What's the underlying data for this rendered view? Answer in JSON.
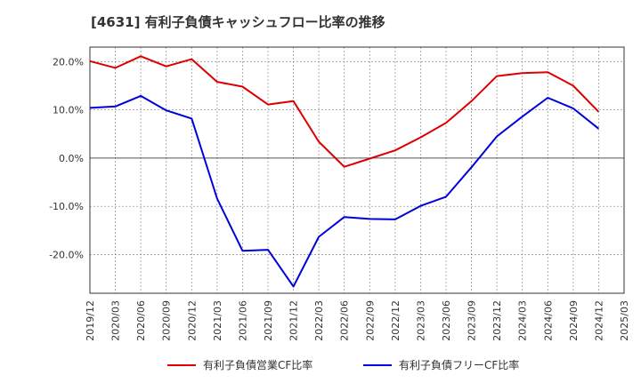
{
  "chart_data": {
    "type": "line",
    "title": "[4631]  有利子負債キャッシュフロー比率の推移",
    "xlabel": "",
    "ylabel": "",
    "x": [
      "2019/12",
      "2020/03",
      "2020/06",
      "2020/09",
      "2020/12",
      "2021/03",
      "2021/06",
      "2021/09",
      "2021/12",
      "2022/03",
      "2022/06",
      "2022/09",
      "2022/12",
      "2023/03",
      "2023/06",
      "2023/09",
      "2023/12",
      "2024/03",
      "2024/06",
      "2024/09",
      "2024/12",
      "2025/03"
    ],
    "ylim": [
      -28,
      23
    ],
    "yticks": [
      20,
      10,
      0,
      -10,
      -20
    ],
    "ytick_labels": [
      "20.0%",
      "10.0%",
      "0.0%",
      "-10.0%",
      "-20.0%"
    ],
    "grid": true,
    "legend_position": "bottom",
    "series": [
      {
        "name": "有利子負債営業CF比率",
        "color": "#dd0000",
        "values": [
          20.1,
          18.7,
          21.1,
          19.0,
          20.5,
          15.8,
          14.8,
          11.1,
          11.8,
          3.4,
          -1.8,
          -0.1,
          1.6,
          4.3,
          7.3,
          11.8,
          17.0,
          17.6,
          17.8,
          15.0,
          9.6,
          null
        ]
      },
      {
        "name": "有利子負債フリーCF比率",
        "color": "#0000dd",
        "values": [
          10.4,
          10.7,
          12.9,
          9.9,
          8.2,
          -8.4,
          -19.2,
          -19.0,
          -26.6,
          -16.3,
          -12.2,
          -12.6,
          -12.7,
          -9.9,
          -8.0,
          -1.9,
          4.5,
          8.6,
          12.5,
          10.3,
          6.1,
          null
        ]
      }
    ]
  }
}
